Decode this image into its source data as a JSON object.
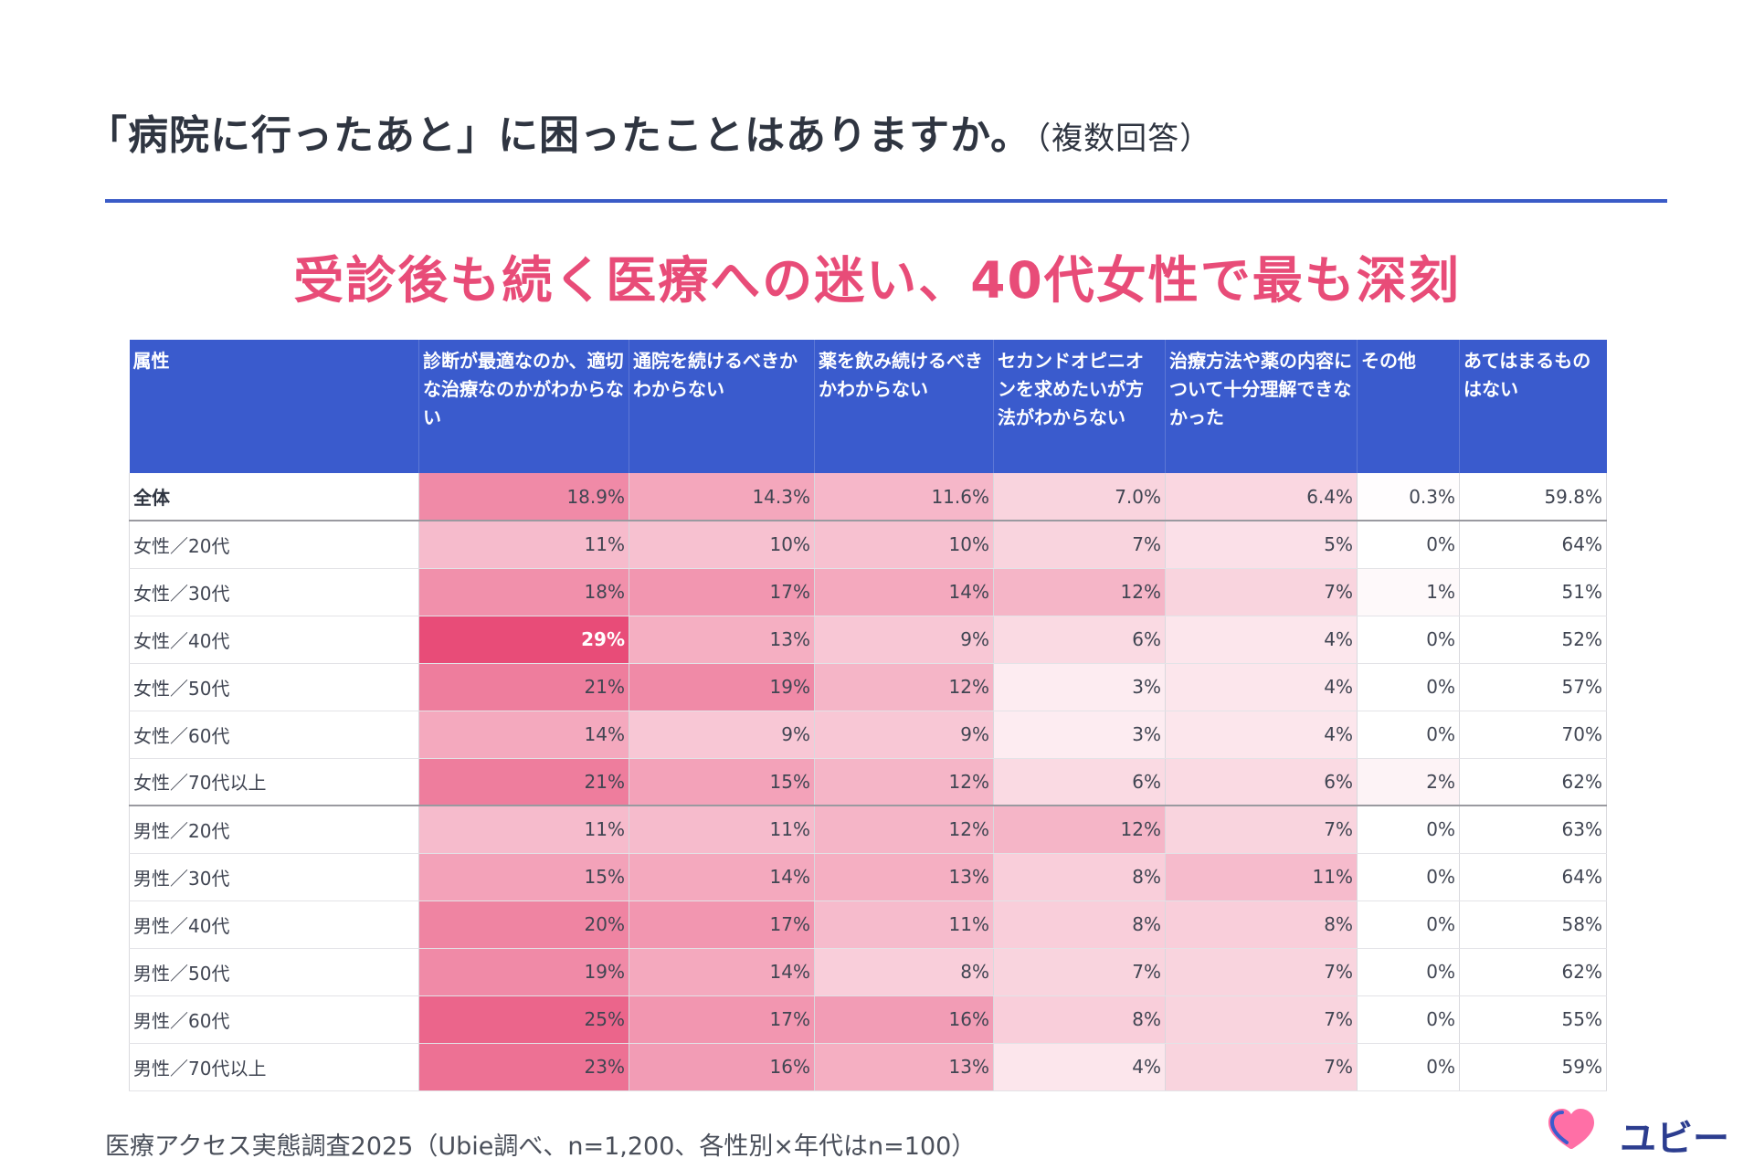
{
  "title": {
    "main": "「病院に行ったあと」に困ったことはありますか。",
    "sub": "（複数回答）"
  },
  "headline": "受診後も続く医療への迷い、40代女性で最も深刻",
  "source": "医療アクセス実態調査2025（Ubie調べ、n=1,200、各性別×年代はn=100）",
  "logo": {
    "text": "ユビー"
  },
  "colors": {
    "header_bg": "#3a5bcd",
    "headline": "#e84c78",
    "rule": "#3a5bc7",
    "heat_max": "#e84c78",
    "heat_min": "#ffffff"
  },
  "chart_data": {
    "type": "table",
    "columns": [
      "属性",
      "診断が最適なのか、適切な治療なのかがわからない",
      "通院を続けるべきかわからない",
      "薬を飲み続けるべきかわからない",
      "セカンドオピニオンを求めたいが方法がわからない",
      "治療方法や薬の内容について十分理解できなかった",
      "その他",
      "あてはまるものはない"
    ],
    "rows": [
      {
        "label": "全体",
        "cells": [
          "18.9%",
          "14.3%",
          "11.6%",
          "7.0%",
          "6.4%",
          "0.3%",
          "59.8%"
        ],
        "values": [
          18.9,
          14.3,
          11.6,
          7.0,
          6.4,
          0.3,
          59.8
        ]
      },
      {
        "label": "女性／20代",
        "cells": [
          "11%",
          "10%",
          "10%",
          "7%",
          "5%",
          "0%",
          "64%"
        ],
        "values": [
          11,
          10,
          10,
          7,
          5,
          0,
          64
        ]
      },
      {
        "label": "女性／30代",
        "cells": [
          "18%",
          "17%",
          "14%",
          "12%",
          "7%",
          "1%",
          "51%"
        ],
        "values": [
          18,
          17,
          14,
          12,
          7,
          1,
          51
        ]
      },
      {
        "label": "女性／40代",
        "cells": [
          "29%",
          "13%",
          "9%",
          "6%",
          "4%",
          "0%",
          "52%"
        ],
        "values": [
          29,
          13,
          9,
          6,
          4,
          0,
          52
        ]
      },
      {
        "label": "女性／50代",
        "cells": [
          "21%",
          "19%",
          "12%",
          "3%",
          "4%",
          "0%",
          "57%"
        ],
        "values": [
          21,
          19,
          12,
          3,
          4,
          0,
          57
        ]
      },
      {
        "label": "女性／60代",
        "cells": [
          "14%",
          "9%",
          "9%",
          "3%",
          "4%",
          "0%",
          "70%"
        ],
        "values": [
          14,
          9,
          9,
          3,
          4,
          0,
          70
        ]
      },
      {
        "label": "女性／70代以上",
        "cells": [
          "21%",
          "15%",
          "12%",
          "6%",
          "6%",
          "2%",
          "62%"
        ],
        "values": [
          21,
          15,
          12,
          6,
          6,
          2,
          62
        ]
      },
      {
        "label": "男性／20代",
        "cells": [
          "11%",
          "11%",
          "12%",
          "12%",
          "7%",
          "0%",
          "63%"
        ],
        "values": [
          11,
          11,
          12,
          12,
          7,
          0,
          63
        ]
      },
      {
        "label": "男性／30代",
        "cells": [
          "15%",
          "14%",
          "13%",
          "8%",
          "11%",
          "0%",
          "64%"
        ],
        "values": [
          15,
          14,
          13,
          8,
          11,
          0,
          64
        ]
      },
      {
        "label": "男性／40代",
        "cells": [
          "20%",
          "17%",
          "11%",
          "8%",
          "8%",
          "0%",
          "58%"
        ],
        "values": [
          20,
          17,
          11,
          8,
          8,
          0,
          58
        ]
      },
      {
        "label": "男性／50代",
        "cells": [
          "19%",
          "14%",
          "8%",
          "7%",
          "7%",
          "0%",
          "62%"
        ],
        "values": [
          19,
          14,
          8,
          7,
          7,
          0,
          62
        ]
      },
      {
        "label": "男性／60代",
        "cells": [
          "25%",
          "17%",
          "16%",
          "8%",
          "7%",
          "0%",
          "55%"
        ],
        "values": [
          25,
          17,
          16,
          8,
          7,
          0,
          55
        ]
      },
      {
        "label": "男性／70代以上",
        "cells": [
          "23%",
          "16%",
          "13%",
          "4%",
          "7%",
          "0%",
          "59%"
        ],
        "values": [
          23,
          16,
          13,
          4,
          7,
          0,
          59
        ]
      }
    ],
    "heat_columns": [
      0,
      1,
      2,
      3,
      4,
      5
    ],
    "heat_scale": [
      0,
      29
    ]
  }
}
